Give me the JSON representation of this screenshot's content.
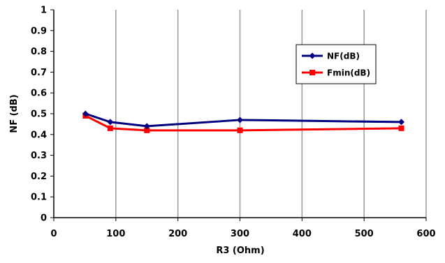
{
  "chart_data": {
    "type": "line",
    "xlabel": "R3 (Ohm)",
    "ylabel": "NF (dB)",
    "xlim": [
      0,
      600
    ],
    "ylim": [
      0,
      1
    ],
    "x_ticks": [
      0,
      100,
      200,
      300,
      400,
      500,
      600
    ],
    "x_tick_labels": [
      "0",
      "100",
      "200",
      "300",
      "400",
      "500",
      "600"
    ],
    "y_ticks": [
      0,
      0.1,
      0.2,
      0.3,
      0.4,
      0.5,
      0.6,
      0.7,
      0.8,
      0.9,
      1
    ],
    "y_tick_labels": [
      "0",
      "0.1",
      "0.2",
      "0.3",
      "0.4",
      "0.5",
      "0.6",
      "0.7",
      "0.8",
      "0.9",
      "1"
    ],
    "grid": "vertical-only",
    "legend_position": "right",
    "series": [
      {
        "name": "NF(dB)",
        "color": "#000080",
        "marker": "diamond",
        "x": [
          51,
          91,
          150,
          300,
          560
        ],
        "y": [
          0.5,
          0.46,
          0.44,
          0.47,
          0.46
        ]
      },
      {
        "name": "Fmin(dB)",
        "color": "#ff0000",
        "marker": "square",
        "x": [
          51,
          91,
          150,
          300,
          560
        ],
        "y": [
          0.49,
          0.43,
          0.42,
          0.42,
          0.43
        ]
      }
    ]
  }
}
